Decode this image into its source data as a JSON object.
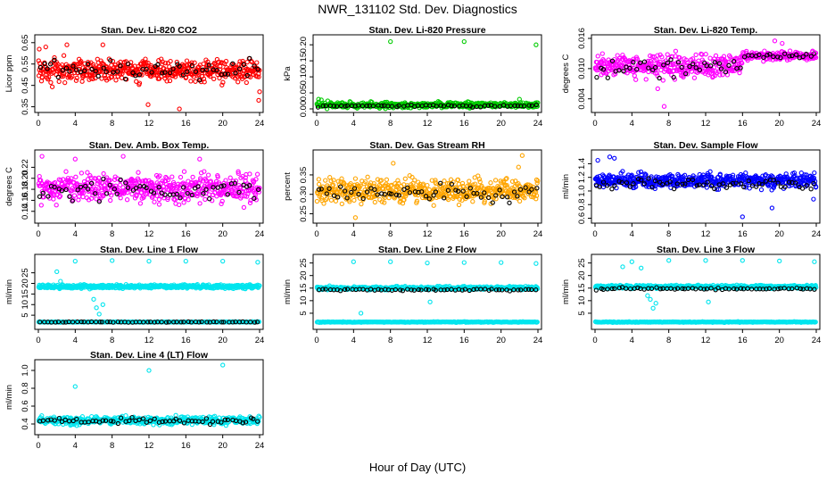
{
  "title": "NWR_131102  Std. Dev. Diagnostics",
  "xlabel": "Hour of Day (UTC)",
  "colors": {
    "black": "#000000",
    "red": "#ff0000",
    "green": "#00cc00",
    "magenta": "#ff00ff",
    "orange": "#ffa500",
    "blue": "#0000ff",
    "cyan": "#00e5ee"
  },
  "chart_data": [
    {
      "type": "scatter",
      "title": "Stan. Dev. Li-820 CO2",
      "ylabel": "Licor ppm",
      "xlim": [
        0,
        24
      ],
      "xticks": [
        0,
        4,
        8,
        12,
        16,
        20,
        24
      ],
      "ylim": [
        0.34,
        0.67
      ],
      "yticks": [
        "0.35",
        "0.45",
        "0.55",
        "0.65"
      ],
      "point_color": "red",
      "point_center": 0.52,
      "point_spread": 0.05,
      "black_center": 0.52,
      "black_spread": 0.04,
      "outliers": [
        [
          0.1,
          0.62
        ],
        [
          0.8,
          0.63
        ],
        [
          3.1,
          0.64
        ],
        [
          7.0,
          0.64
        ],
        [
          11.9,
          0.36
        ],
        [
          15.3,
          0.34
        ],
        [
          23.9,
          0.38
        ],
        [
          24.0,
          0.42
        ]
      ]
    },
    {
      "type": "scatter",
      "title": "Stan. Dev. Li-820 Pressure",
      "ylabel": "kPa",
      "xlim": [
        0,
        24
      ],
      "xticks": [
        0,
        4,
        8,
        12,
        16,
        20,
        24
      ],
      "ylim": [
        0,
        0.22
      ],
      "yticks": [
        "0.00",
        "0.05",
        "0.10",
        "0.15",
        "0.20"
      ],
      "point_color": "green",
      "point_center": 0.012,
      "point_spread": 0.008,
      "black_center": 0.01,
      "black_spread": 0.004,
      "outliers": [
        [
          0.2,
          0.03
        ],
        [
          0.5,
          0.028
        ],
        [
          1.2,
          0.025
        ],
        [
          8.0,
          0.21
        ],
        [
          16.0,
          0.21
        ],
        [
          23.8,
          0.2
        ],
        [
          22.0,
          0.03
        ]
      ]
    },
    {
      "type": "scatter",
      "title": "Stan. Dev. Li-820 Temp.",
      "ylabel": "degrees C",
      "xlim": [
        0,
        24
      ],
      "xticks": [
        0,
        4,
        8,
        12,
        16,
        20,
        24
      ],
      "ylim": [
        0.002,
        0.016
      ],
      "yticks": [
        "0.004",
        "0.010",
        "0.016"
      ],
      "point_color": "magenta",
      "point_center": 0.0105,
      "point_spread": 0.0022,
      "black_center": 0.01,
      "black_spread": 0.0015,
      "outliers": [
        [
          7.5,
          0.0025
        ],
        [
          6.8,
          0.006
        ],
        [
          19.5,
          0.0155
        ],
        [
          20.3,
          0.015
        ],
        [
          23.6,
          0.0135
        ]
      ]
    },
    {
      "type": "scatter",
      "title": "Stan. Dev. Amb. Box Temp.",
      "ylabel": "degrees C",
      "xlim": [
        0,
        24
      ],
      "xticks": [
        0,
        4,
        8,
        12,
        16,
        20,
        24
      ],
      "ylim": [
        0.125,
        0.245
      ],
      "yticks": [
        "0.14",
        "0.16",
        "0.18",
        "0.20",
        "0.22"
      ],
      "point_color": "magenta",
      "point_center": 0.182,
      "point_spread": 0.024,
      "black_center": 0.18,
      "black_spread": 0.018,
      "outliers": [
        [
          0.4,
          0.24
        ],
        [
          9.2,
          0.24
        ],
        [
          4.0,
          0.235
        ],
        [
          17.5,
          0.235
        ]
      ]
    },
    {
      "type": "scatter",
      "title": "Stan. Dev. Gas Stream RH",
      "ylabel": "percent",
      "xlim": [
        0,
        24
      ],
      "xticks": [
        0,
        4,
        8,
        12,
        16,
        20,
        24
      ],
      "ylim": [
        0.235,
        0.405
      ],
      "yticks": [
        "0.25",
        "0.30",
        "0.35"
      ],
      "point_color": "orange",
      "point_center": 0.31,
      "point_spread": 0.028,
      "black_center": 0.305,
      "black_spread": 0.022,
      "outliers": [
        [
          22.3,
          0.4
        ],
        [
          4.2,
          0.24
        ],
        [
          8.3,
          0.38
        ],
        [
          21.9,
          0.37
        ]
      ]
    },
    {
      "type": "scatter",
      "title": "Stan. Dev. Sample Flow",
      "ylabel": "ml/min",
      "xlim": [
        0,
        24
      ],
      "xticks": [
        0,
        4,
        8,
        12,
        16,
        20,
        24
      ],
      "ylim": [
        0.58,
        1.55
      ],
      "yticks": [
        "0.6",
        "0.8",
        "1.0",
        "1.2",
        "1.4"
      ],
      "point_color": "blue",
      "point_center": 1.15,
      "point_spread": 0.1,
      "black_center": 1.1,
      "black_spread": 0.07,
      "outliers": [
        [
          16.0,
          0.62
        ],
        [
          0.3,
          1.45
        ],
        [
          1.6,
          1.5
        ],
        [
          2.1,
          1.48
        ],
        [
          23.7,
          0.88
        ],
        [
          19.2,
          0.75
        ]
      ]
    },
    {
      "type": "scatter",
      "title": "Stan. Dev. Line 1 Flow",
      "ylabel": "ml/min",
      "xlim": [
        0,
        24
      ],
      "xticks": [
        0,
        4,
        8,
        12,
        16,
        20,
        24
      ],
      "ylim": [
        0,
        32
      ],
      "yticks": [
        "5",
        "10",
        "15",
        "20",
        "25"
      ],
      "point_color": "cyan",
      "point_center": 18.5,
      "point_spread": 0.8,
      "base_value": 1.8,
      "black_center": 1.8,
      "black_spread": 0.15,
      "outliers": [
        [
          2.0,
          25.5
        ],
        [
          2.4,
          21.0
        ],
        [
          4.0,
          30.5
        ],
        [
          6.0,
          12.5
        ],
        [
          6.3,
          8.5
        ],
        [
          6.6,
          5.5
        ],
        [
          7.0,
          10.0
        ],
        [
          8.0,
          30.8
        ],
        [
          12.0,
          30.5
        ],
        [
          16.0,
          30.5
        ],
        [
          20.0,
          30.5
        ],
        [
          23.8,
          30.0
        ]
      ]
    },
    {
      "type": "scatter",
      "title": "Stan. Dev. Line 2 Flow",
      "ylabel": "ml/min",
      "xlim": [
        0,
        24
      ],
      "xticks": [
        0,
        4,
        8,
        12,
        16,
        20,
        24
      ],
      "ylim": [
        0,
        27
      ],
      "yticks": [
        "5",
        "10",
        "15",
        "20",
        "25"
      ],
      "point_color": "cyan",
      "point_center": 15.0,
      "point_spread": 0.6,
      "base_value": 1.5,
      "black_center": 14.3,
      "black_spread": 0.35,
      "outliers": [
        [
          4.0,
          25.5
        ],
        [
          4.8,
          5.0
        ],
        [
          8.0,
          25.5
        ],
        [
          12.0,
          25.0
        ],
        [
          12.3,
          9.5
        ],
        [
          16.0,
          25.2
        ],
        [
          20.0,
          25.2
        ],
        [
          23.8,
          24.8
        ]
      ]
    },
    {
      "type": "scatter",
      "title": "Stan. Dev. Line 3 Flow",
      "ylabel": "ml/min",
      "xlim": [
        0,
        24
      ],
      "xticks": [
        0,
        4,
        8,
        12,
        16,
        20,
        24
      ],
      "ylim": [
        0,
        27
      ],
      "yticks": [
        "5",
        "10",
        "15",
        "20",
        "25"
      ],
      "point_color": "cyan",
      "point_center": 15.5,
      "point_spread": 0.6,
      "base_value": 1.5,
      "black_center": 14.8,
      "black_spread": 0.4,
      "outliers": [
        [
          3.0,
          23.5
        ],
        [
          4.0,
          25.5
        ],
        [
          5.0,
          23.0
        ],
        [
          5.7,
          12.0
        ],
        [
          6.0,
          10.5
        ],
        [
          6.3,
          7.0
        ],
        [
          6.6,
          9.0
        ],
        [
          8.0,
          26.0
        ],
        [
          12.0,
          26.0
        ],
        [
          12.3,
          9.5
        ],
        [
          16.0,
          26.0
        ],
        [
          20.0,
          25.8
        ],
        [
          23.8,
          25.5
        ]
      ]
    },
    {
      "type": "scatter",
      "title": "Stan. Dev. Line 4 (LT) Flow",
      "ylabel": "ml/min",
      "xlim": [
        0,
        24
      ],
      "xticks": [
        0,
        4,
        8,
        12,
        16,
        20,
        24
      ],
      "ylim": [
        0.32,
        1.08
      ],
      "yticks": [
        "0.4",
        "0.6",
        "0.8",
        "1.0"
      ],
      "point_color": "cyan",
      "point_center": 0.44,
      "point_spread": 0.04,
      "black_center": 0.44,
      "black_spread": 0.03,
      "outliers": [
        [
          4.0,
          0.82
        ],
        [
          12.0,
          1.0
        ],
        [
          20.0,
          1.06
        ]
      ]
    }
  ]
}
